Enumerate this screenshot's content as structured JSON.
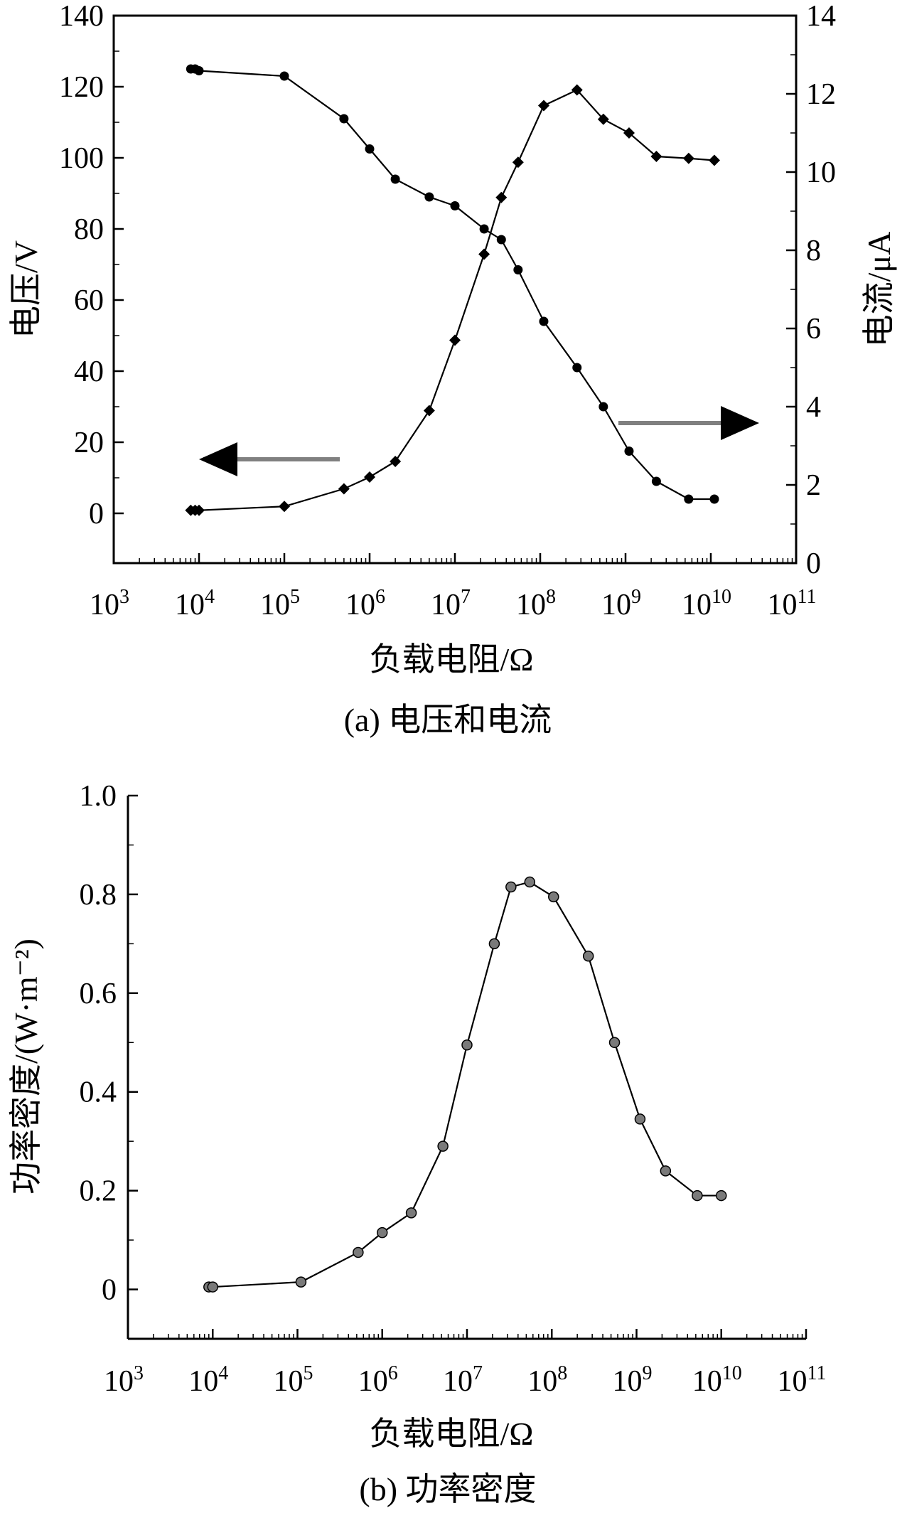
{
  "chart_data": [
    {
      "id": "a",
      "type": "line",
      "caption": "(a) 电压和电流",
      "xlabel": "负载电阻/Ω",
      "ylabel_left": "电压/V",
      "ylabel_right": "电流/μA",
      "x_scale": "log",
      "xlim": [
        1000,
        100000000000
      ],
      "x_ticks": [
        {
          "base": "10",
          "exp": "3"
        },
        {
          "base": "10",
          "exp": "4"
        },
        {
          "base": "10",
          "exp": "5"
        },
        {
          "base": "10",
          "exp": "6"
        },
        {
          "base": "10",
          "exp": "7"
        },
        {
          "base": "10",
          "exp": "8"
        },
        {
          "base": "10",
          "exp": "9"
        },
        {
          "base": "10",
          "exp": "10"
        },
        {
          "base": "10",
          "exp": "11"
        }
      ],
      "ylim_left": [
        -14,
        140
      ],
      "y_ticks_left": [
        "0",
        "20",
        "40",
        "60",
        "80",
        "100",
        "120",
        "140"
      ],
      "ylim_right": [
        0,
        14
      ],
      "y_ticks_right": [
        "0",
        "2",
        "4",
        "6",
        "8",
        "10",
        "12",
        "14"
      ],
      "grid": false,
      "series": [
        {
          "axis": "left",
          "marker": "circle",
          "color": "#000000",
          "x": [
            8000,
            9000,
            10000,
            100000,
            500000,
            1000000,
            2000000,
            5000000,
            10000000,
            22000000,
            35000000,
            55000000,
            110000000,
            270000000,
            550000000,
            1100000000,
            2300000000,
            5500000000,
            11000000000
          ],
          "y": [
            125,
            125,
            124.5,
            123,
            111,
            102.5,
            94,
            89,
            86.5,
            80,
            77,
            68.5,
            54,
            41,
            30,
            17.5,
            9,
            4,
            4
          ]
        },
        {
          "axis": "right",
          "marker": "diamond",
          "color": "#000000",
          "x": [
            8000,
            9000,
            10000,
            100000,
            500000,
            1000000,
            2000000,
            5000000,
            10000000,
            22000000,
            35000000,
            55000000,
            110000000,
            270000000,
            550000000,
            1100000000,
            2300000000,
            5500000000,
            11000000000
          ],
          "y": [
            1.35,
            1.35,
            1.35,
            1.45,
            1.9,
            2.2,
            2.6,
            3.9,
            5.7,
            7.9,
            9.35,
            10.25,
            11.7,
            12.1,
            11.35,
            11.0,
            10.4,
            10.35,
            10.3
          ]
        }
      ],
      "annotations": [
        {
          "type": "arrow",
          "direction": "left",
          "points_to": "left axis",
          "color": "#808080"
        },
        {
          "type": "arrow",
          "direction": "right",
          "points_to": "right axis",
          "color": "#808080"
        }
      ]
    },
    {
      "id": "b",
      "type": "line",
      "caption": "(b) 功率密度",
      "xlabel": "负载电阻/Ω",
      "ylabel": "功率密度/(W·m⁻²)",
      "x_scale": "log",
      "xlim": [
        1000,
        100000000000
      ],
      "x_ticks": [
        {
          "base": "10",
          "exp": "3"
        },
        {
          "base": "10",
          "exp": "4"
        },
        {
          "base": "10",
          "exp": "5"
        },
        {
          "base": "10",
          "exp": "6"
        },
        {
          "base": "10",
          "exp": "7"
        },
        {
          "base": "10",
          "exp": "8"
        },
        {
          "base": "10",
          "exp": "9"
        },
        {
          "base": "10",
          "exp": "10"
        },
        {
          "base": "10",
          "exp": "11"
        }
      ],
      "ylim": [
        -0.1,
        1.0
      ],
      "y_ticks": [
        "0",
        "0.2",
        "0.4",
        "0.6",
        "0.8",
        "1.0"
      ],
      "grid": false,
      "series": [
        {
          "marker": "circle",
          "color": "#000000",
          "marker_fill": "#7a7a7a",
          "x": [
            9000,
            10000,
            110000,
            520000,
            1000000,
            2200000,
            5200000,
            10000000,
            21000000,
            33000000,
            55000000,
            105000000,
            270000000,
            550000000,
            1100000000,
            2200000000,
            5200000000,
            10000000000
          ],
          "y": [
            0.005,
            0.005,
            0.015,
            0.075,
            0.115,
            0.155,
            0.29,
            0.495,
            0.7,
            0.815,
            0.825,
            0.795,
            0.675,
            0.5,
            0.345,
            0.24,
            0.19,
            0.19
          ]
        }
      ]
    }
  ]
}
